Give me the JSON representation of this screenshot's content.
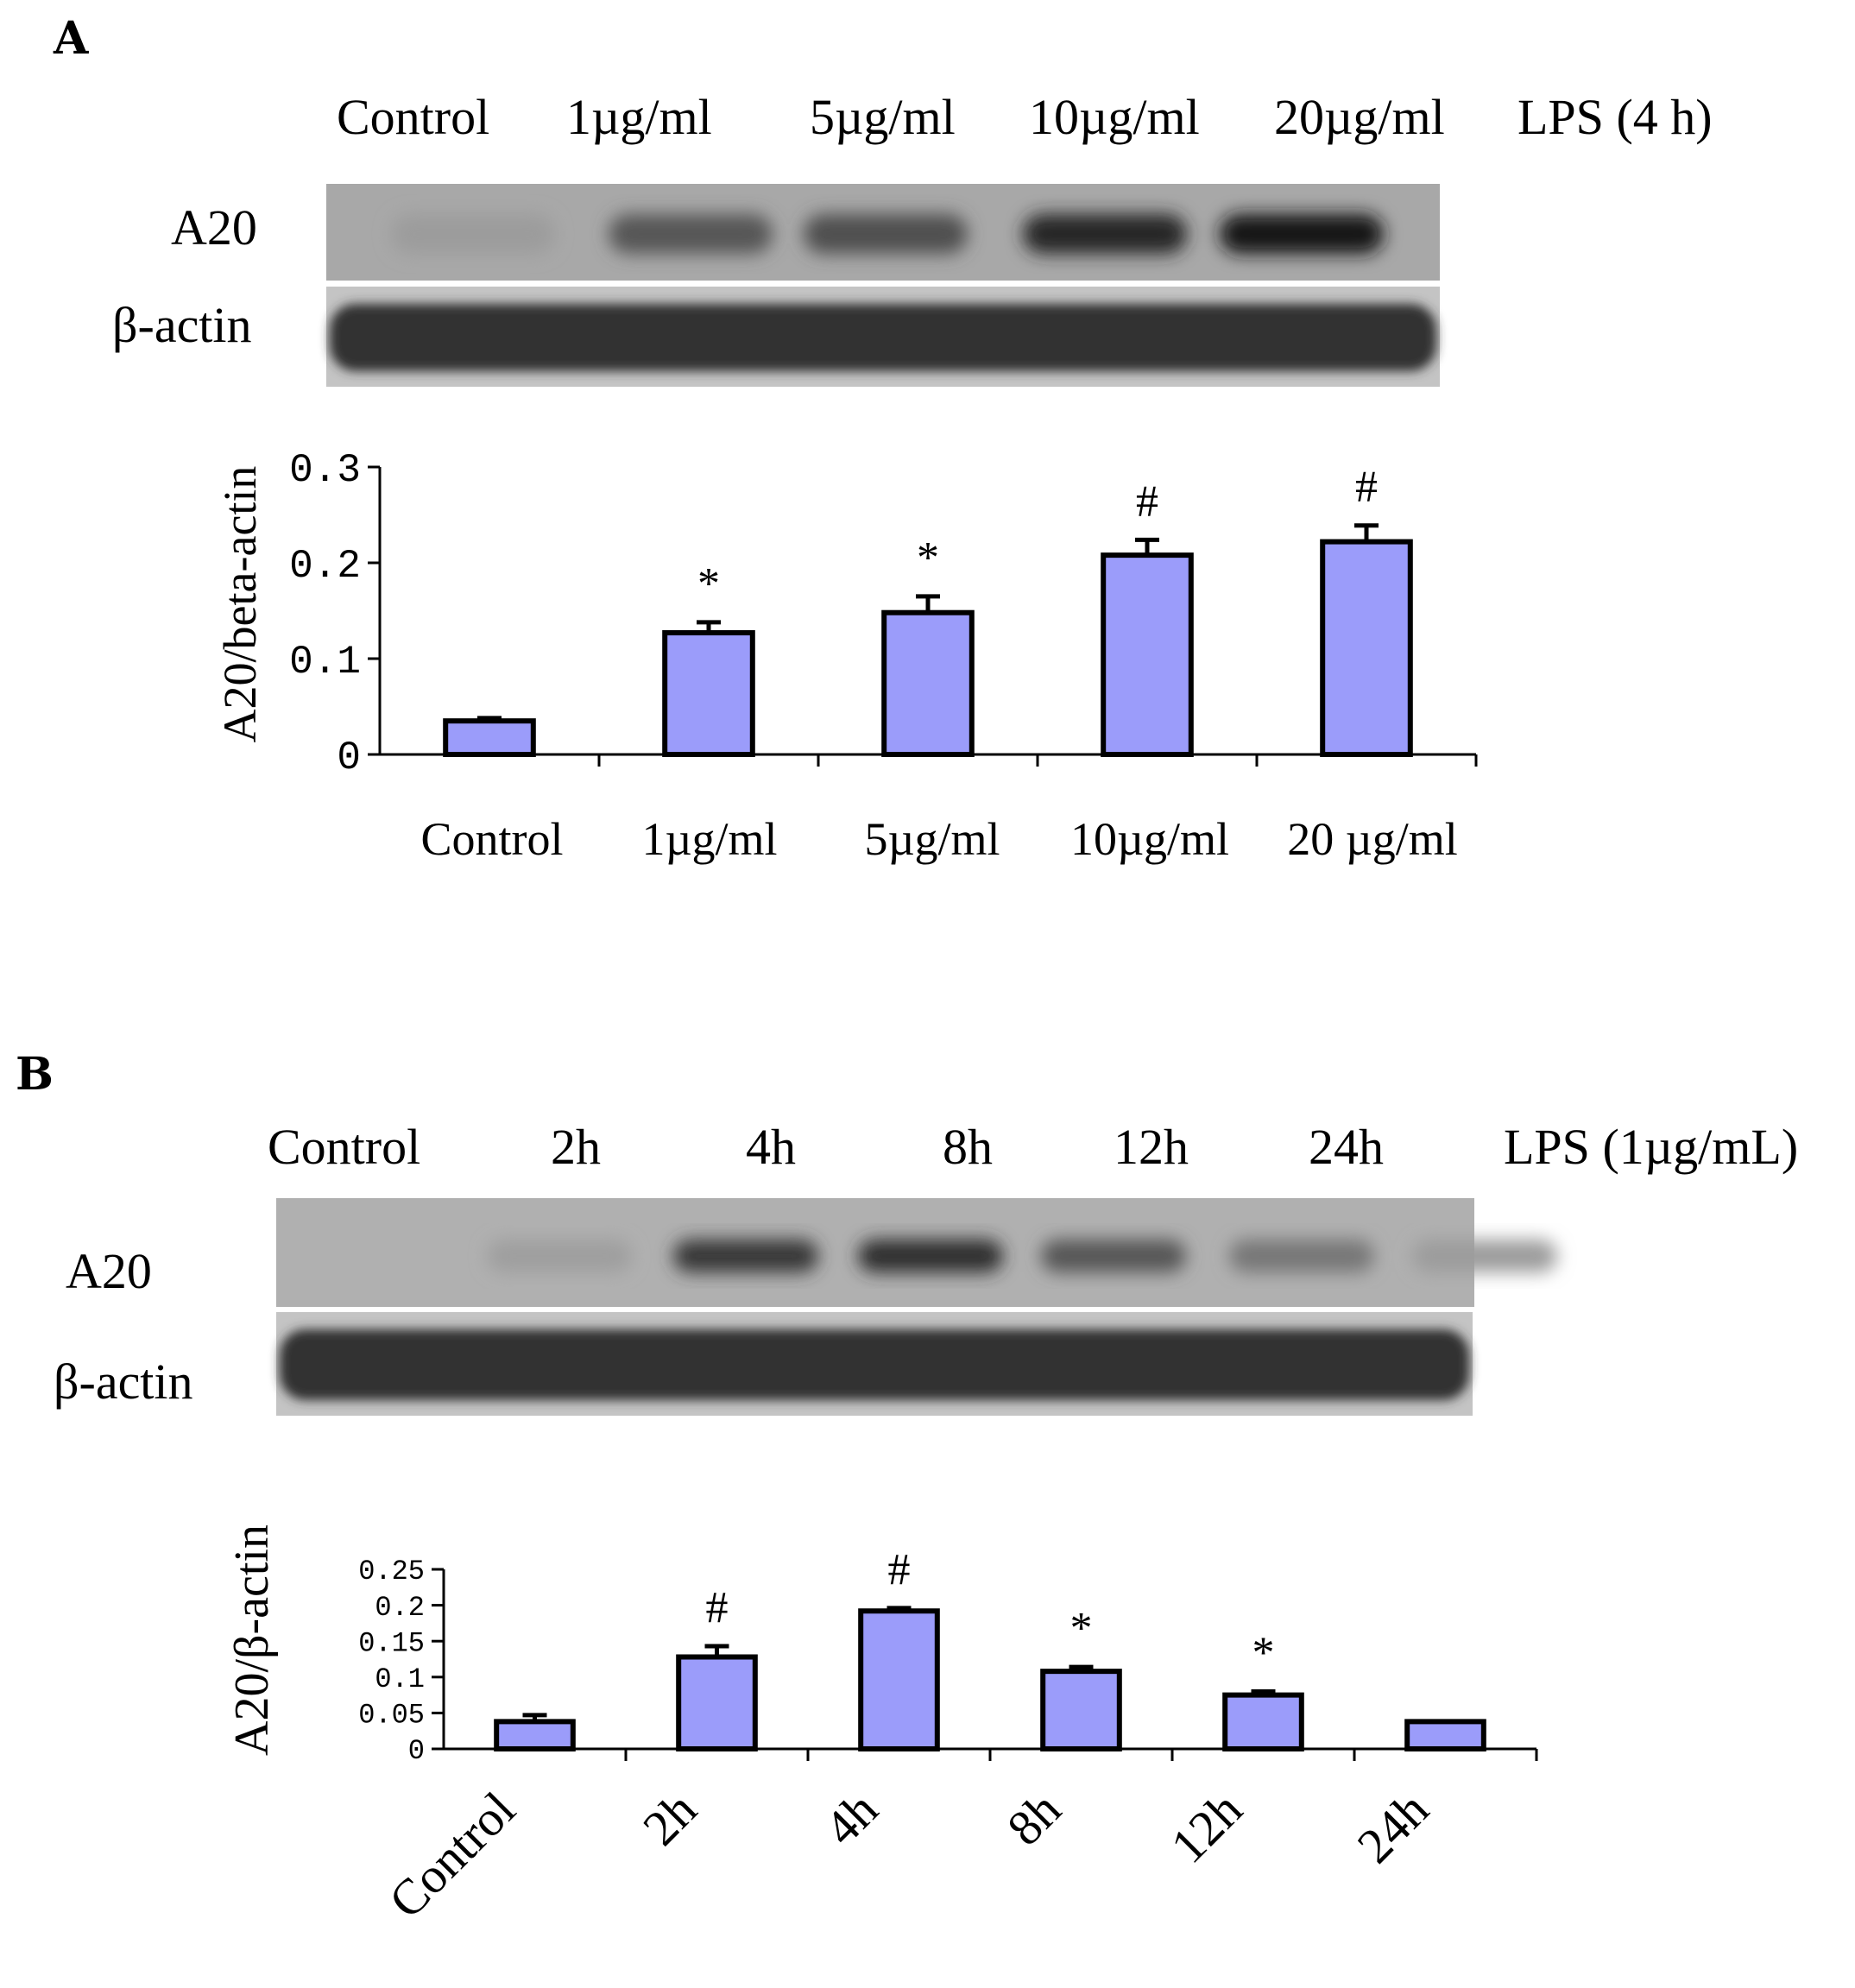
{
  "panels": {
    "a": {
      "letter": "A",
      "lanes": [
        "Control",
        "1µg/ml",
        "5µg/ml",
        "10µg/ml",
        "20µg/ml"
      ],
      "treatment": "LPS (4 h)",
      "blot_rows": [
        "A20",
        "β-actin"
      ],
      "band_intensity": [
        0.12,
        0.55,
        0.6,
        0.85,
        0.95
      ]
    },
    "b": {
      "letter": "B",
      "lanes": [
        "Control",
        "2h",
        "4h",
        "8h",
        "12h",
        "24h"
      ],
      "treatment": "LPS (1µg/mL)",
      "blot_rows": [
        "A20",
        "β-actin"
      ],
      "band_intensity": [
        0.1,
        0.75,
        0.8,
        0.55,
        0.35,
        0.12
      ]
    }
  },
  "chart_data": [
    {
      "type": "bar",
      "panel": "A",
      "title": "",
      "ylabel": "A20/beta-actin",
      "xlabel": "",
      "categories": [
        "Control",
        "1µg/ml",
        "5µg/ml",
        "10µg/ml",
        "20 µg/ml"
      ],
      "series": [
        {
          "values": [
            0.035,
            0.127,
            0.148,
            0.208,
            0.222
          ],
          "errors": [
            0.003,
            0.011,
            0.017,
            0.016,
            0.017
          ]
        }
      ],
      "significance": [
        "",
        "*",
        "*",
        "#",
        "#"
      ],
      "ylim": [
        0,
        0.3
      ],
      "yticks": [
        "0",
        "0.1",
        "0.2",
        "0.3"
      ],
      "grid": false,
      "bar_color": "#9b9cfa"
    },
    {
      "type": "bar",
      "panel": "B",
      "title": "",
      "ylabel": "A20/β-actin",
      "xlabel": "",
      "categories": [
        "Control",
        "2h",
        "4h",
        "8h",
        "12h",
        "24h"
      ],
      "series": [
        {
          "values": [
            0.038,
            0.128,
            0.192,
            0.108,
            0.075,
            0.038
          ],
          "errors": [
            0.009,
            0.015,
            0.004,
            0.006,
            0.005,
            0.0
          ]
        }
      ],
      "significance": [
        "",
        "#",
        "#",
        "*",
        "*",
        ""
      ],
      "ylim": [
        0,
        0.25
      ],
      "yticks": [
        "0",
        "0.05",
        "0.1",
        "0.15",
        "0.2",
        "0.25"
      ],
      "grid": false,
      "bar_color": "#9b9cfa"
    }
  ]
}
